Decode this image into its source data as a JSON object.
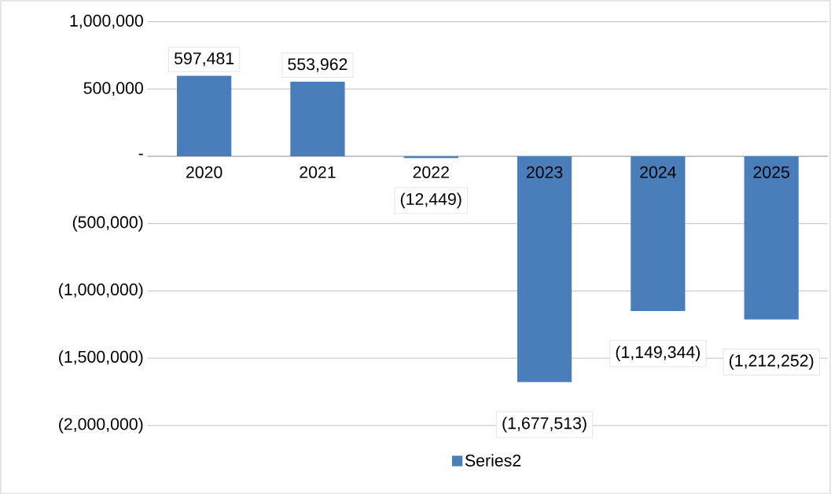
{
  "chart_data": {
    "type": "bar",
    "categories": [
      "2020",
      "2021",
      "2022",
      "2023",
      "2024",
      "2025"
    ],
    "series": [
      {
        "name": "Series2",
        "color": "#4a7ebb",
        "values": [
          597481,
          553962,
          -12449,
          -1677513,
          -1149344,
          -1212252
        ],
        "value_labels": [
          "597,481",
          "553,962",
          "(12,449)",
          "(1,677,513)",
          "(1,149,344)",
          "(1,212,252)"
        ]
      }
    ],
    "ylim": [
      -2000000,
      1000000
    ],
    "yticks": [
      {
        "value": -2000000,
        "label": "(2,000,000)"
      },
      {
        "value": -1500000,
        "label": "(1,500,000)"
      },
      {
        "value": -1000000,
        "label": "(1,000,000)"
      },
      {
        "value": -500000,
        "label": "(500,000)"
      },
      {
        "value": 0,
        "label": "-"
      },
      {
        "value": 500000,
        "label": "500,000"
      },
      {
        "value": 1000000,
        "label": "1,000,000"
      }
    ],
    "grid": "y",
    "legend": "bottom"
  }
}
